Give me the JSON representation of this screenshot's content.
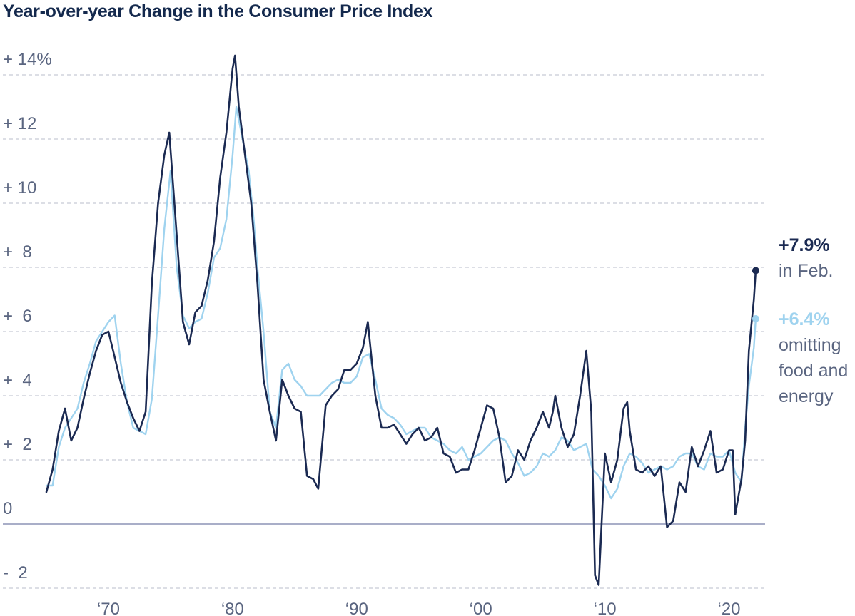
{
  "colors": {
    "headline": "#14294d",
    "cpi_line": "#1b2a52",
    "core_line": "#9fd3ef",
    "axis_text": "#5a6580",
    "grid": "#b8bccb",
    "zero_line": "#a9aec8"
  },
  "chart_data": {
    "type": "line",
    "title": "Year-over-year Change in the Consumer Price Index",
    "xlabel": "",
    "ylabel": "",
    "xlim": [
      1965,
      2022.5
    ],
    "ylim": [
      -2,
      15
    ],
    "grid": true,
    "y_ticks": [
      {
        "value": 14,
        "label": "+ 14%"
      },
      {
        "value": 12,
        "label": "+ 12"
      },
      {
        "value": 10,
        "label": "+ 10"
      },
      {
        "value": 8,
        "label": "+  8"
      },
      {
        "value": 6,
        "label": "+  6"
      },
      {
        "value": 4,
        "label": "+  4"
      },
      {
        "value": 2,
        "label": "+  2"
      },
      {
        "value": 0,
        "label": "0"
      },
      {
        "value": -2,
        "label": "-  2"
      }
    ],
    "x_ticks": [
      {
        "value": 1970,
        "label": "‘70"
      },
      {
        "value": 1980,
        "label": "‘80"
      },
      {
        "value": 1990,
        "label": "‘90"
      },
      {
        "value": 2000,
        "label": "‘00"
      },
      {
        "value": 2010,
        "label": "‘10"
      },
      {
        "value": 2020,
        "label": "‘20"
      }
    ],
    "series": [
      {
        "key": "cpi",
        "label": "+7.9%",
        "note": "in Feb.",
        "x": [
          1965.0,
          1965.5,
          1966.0,
          1966.5,
          1967.0,
          1967.5,
          1968.0,
          1968.5,
          1969.0,
          1969.5,
          1970.0,
          1970.5,
          1971.0,
          1971.5,
          1972.0,
          1972.5,
          1973.0,
          1973.5,
          1974.0,
          1974.5,
          1974.9,
          1975.5,
          1976.0,
          1976.5,
          1977.0,
          1977.5,
          1978.0,
          1978.5,
          1979.0,
          1979.5,
          1980.0,
          1980.2,
          1980.5,
          1981.0,
          1981.5,
          1982.0,
          1982.5,
          1983.0,
          1983.5,
          1984.0,
          1984.5,
          1985.0,
          1985.5,
          1986.0,
          1986.5,
          1986.9,
          1987.5,
          1988.0,
          1988.5,
          1989.0,
          1989.5,
          1990.0,
          1990.5,
          1990.9,
          1991.5,
          1992.0,
          1992.5,
          1993.0,
          1993.5,
          1994.0,
          1994.5,
          1995.0,
          1995.5,
          1996.0,
          1996.5,
          1997.0,
          1997.5,
          1998.0,
          1998.5,
          1999.0,
          1999.5,
          2000.0,
          2000.5,
          2001.0,
          2001.5,
          2002.0,
          2002.5,
          2003.0,
          2003.5,
          2004.0,
          2004.5,
          2005.0,
          2005.5,
          2005.8,
          2006.0,
          2006.5,
          2007.0,
          2007.5,
          2008.0,
          2008.5,
          2008.9,
          2009.2,
          2009.5,
          2010.0,
          2010.5,
          2011.0,
          2011.5,
          2011.8,
          2012.0,
          2012.5,
          2013.0,
          2013.5,
          2014.0,
          2014.5,
          2015.0,
          2015.5,
          2016.0,
          2016.5,
          2017.0,
          2017.5,
          2018.0,
          2018.5,
          2019.0,
          2019.5,
          2020.0,
          2020.3,
          2020.5,
          2021.0,
          2021.3,
          2021.6,
          2022.0,
          2022.15
        ],
        "values": [
          1.0,
          1.7,
          2.9,
          3.6,
          2.6,
          3.0,
          3.9,
          4.7,
          5.4,
          5.9,
          6.0,
          5.2,
          4.4,
          3.8,
          3.3,
          2.9,
          3.5,
          7.5,
          10.0,
          11.5,
          12.2,
          9.0,
          6.3,
          5.6,
          6.6,
          6.8,
          7.6,
          8.8,
          10.8,
          12.2,
          14.2,
          14.6,
          13.0,
          11.5,
          10.0,
          7.5,
          4.5,
          3.5,
          2.6,
          4.5,
          4.0,
          3.6,
          3.5,
          1.5,
          1.4,
          1.1,
          3.7,
          4.0,
          4.2,
          4.8,
          4.8,
          5.0,
          5.5,
          6.3,
          4.0,
          3.0,
          3.0,
          3.1,
          2.8,
          2.5,
          2.8,
          3.0,
          2.6,
          2.7,
          3.0,
          2.2,
          2.1,
          1.6,
          1.7,
          1.7,
          2.3,
          3.0,
          3.7,
          3.6,
          2.7,
          1.3,
          1.5,
          2.3,
          2.0,
          2.6,
          3.0,
          3.5,
          3.0,
          3.5,
          4.0,
          3.0,
          2.4,
          2.8,
          4.0,
          5.4,
          3.5,
          -1.6,
          -1.9,
          2.2,
          1.3,
          2.0,
          3.6,
          3.8,
          2.9,
          1.7,
          1.6,
          1.8,
          1.5,
          1.8,
          -0.1,
          0.1,
          1.3,
          1.0,
          2.4,
          1.8,
          2.3,
          2.9,
          1.6,
          1.7,
          2.3,
          2.3,
          0.3,
          1.4,
          2.6,
          5.4,
          7.0,
          7.9
        ]
      },
      {
        "key": "core",
        "label": "+6.4%",
        "note": "omitting food and energy",
        "x": [
          1965.0,
          1965.5,
          1966.0,
          1966.5,
          1967.0,
          1967.5,
          1968.0,
          1968.5,
          1969.0,
          1969.5,
          1970.0,
          1970.5,
          1971.0,
          1971.5,
          1972.0,
          1972.5,
          1973.0,
          1973.5,
          1974.0,
          1974.5,
          1975.0,
          1975.5,
          1976.0,
          1976.5,
          1977.0,
          1977.5,
          1978.0,
          1978.5,
          1979.0,
          1979.5,
          1980.0,
          1980.3,
          1980.8,
          1981.3,
          1981.7,
          1982.0,
          1982.5,
          1983.0,
          1983.5,
          1984.0,
          1984.5,
          1985.0,
          1985.5,
          1986.0,
          1986.5,
          1987.0,
          1987.5,
          1988.0,
          1988.5,
          1989.0,
          1989.5,
          1990.0,
          1990.5,
          1991.0,
          1991.5,
          1992.0,
          1992.5,
          1993.0,
          1993.5,
          1994.0,
          1994.5,
          1995.0,
          1995.5,
          1996.0,
          1996.5,
          1997.0,
          1997.5,
          1998.0,
          1998.5,
          1999.0,
          1999.5,
          2000.0,
          2000.5,
          2001.0,
          2001.5,
          2002.0,
          2002.5,
          2003.0,
          2003.5,
          2004.0,
          2004.5,
          2005.0,
          2005.5,
          2006.0,
          2006.5,
          2007.0,
          2007.5,
          2008.0,
          2008.5,
          2009.0,
          2009.5,
          2010.0,
          2010.5,
          2011.0,
          2011.5,
          2012.0,
          2012.5,
          2013.0,
          2013.5,
          2014.0,
          2014.5,
          2015.0,
          2015.5,
          2016.0,
          2016.5,
          2017.0,
          2017.5,
          2018.0,
          2018.5,
          2019.0,
          2019.5,
          2020.0,
          2020.5,
          2021.0,
          2021.3,
          2021.6,
          2022.0,
          2022.15
        ],
        "values": [
          1.2,
          1.2,
          2.4,
          3.0,
          3.3,
          3.6,
          4.4,
          5.0,
          5.7,
          6.0,
          6.3,
          6.5,
          5.0,
          3.8,
          3.0,
          2.9,
          2.8,
          3.9,
          6.5,
          9.2,
          11.0,
          8.0,
          6.5,
          6.1,
          6.3,
          6.4,
          7.2,
          8.3,
          8.6,
          9.5,
          11.5,
          13.0,
          12.0,
          11.0,
          9.5,
          8.0,
          6.0,
          3.5,
          3.0,
          4.8,
          5.0,
          4.5,
          4.3,
          4.0,
          4.0,
          4.0,
          4.2,
          4.4,
          4.5,
          4.4,
          4.4,
          4.6,
          5.2,
          5.3,
          4.5,
          3.6,
          3.4,
          3.3,
          3.1,
          2.8,
          2.9,
          3.0,
          3.0,
          2.7,
          2.6,
          2.5,
          2.3,
          2.2,
          2.4,
          2.0,
          2.1,
          2.2,
          2.4,
          2.6,
          2.7,
          2.6,
          2.2,
          1.9,
          1.5,
          1.6,
          1.8,
          2.2,
          2.1,
          2.3,
          2.7,
          2.6,
          2.3,
          2.4,
          2.5,
          1.7,
          1.5,
          1.2,
          0.8,
          1.1,
          1.8,
          2.2,
          2.1,
          1.9,
          1.6,
          1.7,
          1.8,
          1.7,
          1.8,
          2.1,
          2.2,
          2.2,
          1.8,
          1.7,
          2.2,
          2.1,
          2.1,
          2.3,
          1.6,
          1.3,
          3.0,
          4.3,
          5.5,
          6.4
        ]
      }
    ]
  }
}
